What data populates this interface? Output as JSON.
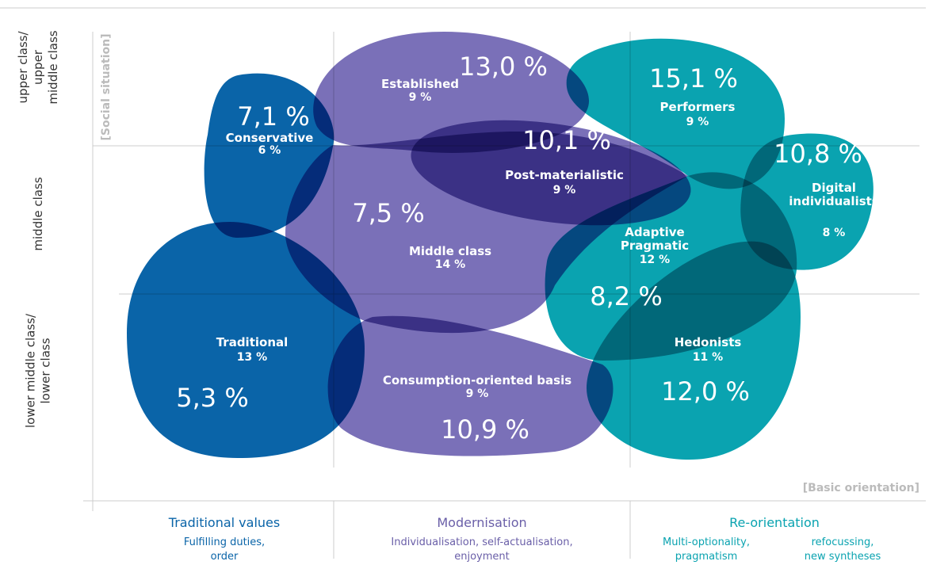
{
  "y_axis": {
    "title": "[Social situation]",
    "levels": [
      [
        "upper class/",
        "upper",
        "middle class"
      ],
      [
        "middle class"
      ],
      [
        "lower middle class/",
        "lower class"
      ]
    ]
  },
  "x_axis": {
    "title": "[Basic orientation]",
    "groups": [
      {
        "title": "Traditional values",
        "subtitles": [
          [
            "Fulfilling duties,",
            "order"
          ]
        ]
      },
      {
        "title": "Modernisation",
        "subtitles": [
          [
            "Individualisation, self-actualisation,",
            "enjoyment"
          ]
        ]
      },
      {
        "title": "Re-orientation",
        "subtitles": [
          [
            "Multi-optionality,",
            "pragmatism"
          ],
          [
            "refocussing,",
            "new syntheses"
          ]
        ]
      }
    ]
  },
  "milieus": [
    {
      "name": [
        "Conservative"
      ],
      "share": "6 %",
      "change": "7,1 %"
    },
    {
      "name": [
        "Established"
      ],
      "share": "9 %",
      "change": "13,0 %"
    },
    {
      "name": [
        "Performers"
      ],
      "share": "9 %",
      "change": "15,1 %"
    },
    {
      "name": [
        "Post-materialistic"
      ],
      "share": "9 %",
      "change": "10,1 %"
    },
    {
      "name": [
        "Digital",
        "individualists"
      ],
      "share": "8 %",
      "change": "10,8 %"
    },
    {
      "name": [
        "Middle class"
      ],
      "share": "14 %",
      "change": "7,5 %"
    },
    {
      "name": [
        "Adaptive",
        "Pragmatic"
      ],
      "share": "12 %",
      "change": "8,2 %"
    },
    {
      "name": [
        "Traditional"
      ],
      "share": "13 %",
      "change": "5,3 %"
    },
    {
      "name": [
        "Consumption-oriented basis"
      ],
      "share": "9 %",
      "change": "10,9 %"
    },
    {
      "name": [
        "Hedonists"
      ],
      "share": "11 %",
      "change": "12,0 %"
    }
  ]
}
